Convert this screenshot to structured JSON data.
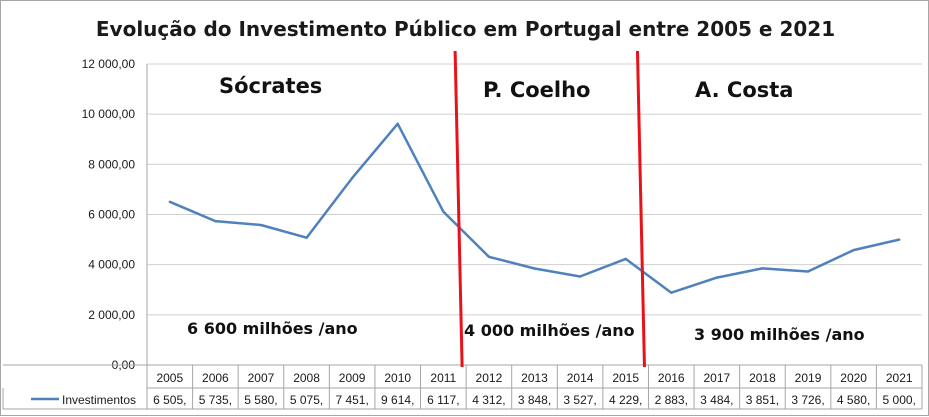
{
  "chart_data": {
    "type": "line",
    "title": "Evolução do Investimento Público em Portugal entre 2005 e 2021",
    "categories": [
      "2005",
      "2006",
      "2007",
      "2008",
      "2009",
      "2010",
      "2011",
      "2012",
      "2013",
      "2014",
      "2015",
      "2016",
      "2017",
      "2018",
      "2019",
      "2020",
      "2021"
    ],
    "series": [
      {
        "name": "Investimentos",
        "color": "#4f81bd",
        "values": [
          6505,
          5735,
          5580,
          5075,
          7451,
          9614,
          6117,
          4312,
          3848,
          3527,
          4229,
          2883,
          3484,
          3851,
          3726,
          4580,
          5000
        ],
        "table_values": [
          "6 505,",
          "5 735,",
          "5 580,",
          "5 075,",
          "7 451,",
          "9 614,",
          "6 117,",
          "4 312,",
          "3 848,",
          "3 527,",
          "4 229,",
          "2 883,",
          "3 484,",
          "3 851,",
          "3 726,",
          "4 580,",
          "5 000,"
        ]
      }
    ],
    "ylim": [
      0,
      12000
    ],
    "y_ticks": [
      0,
      2000,
      4000,
      6000,
      8000,
      10000,
      12000
    ],
    "y_tick_labels": [
      "0,00",
      "2 000,00",
      "4 000,00",
      "6 000,00",
      "8 000,00",
      "10 000,00",
      "12 000,00"
    ],
    "grid": true,
    "legend": "data-table",
    "annotations": {
      "dividers": [
        {
          "after_category": "2011",
          "color": "#e8121b"
        },
        {
          "after_category": "2015",
          "color": "#e8121b"
        }
      ],
      "periods": [
        {
          "name": "Sócrates",
          "average": "6 600 milhões /ano"
        },
        {
          "name": "P. Coelho",
          "average": "4 000 milhões /ano"
        },
        {
          "name": "A. Costa",
          "average": "3 900 milhões /ano"
        }
      ]
    }
  }
}
